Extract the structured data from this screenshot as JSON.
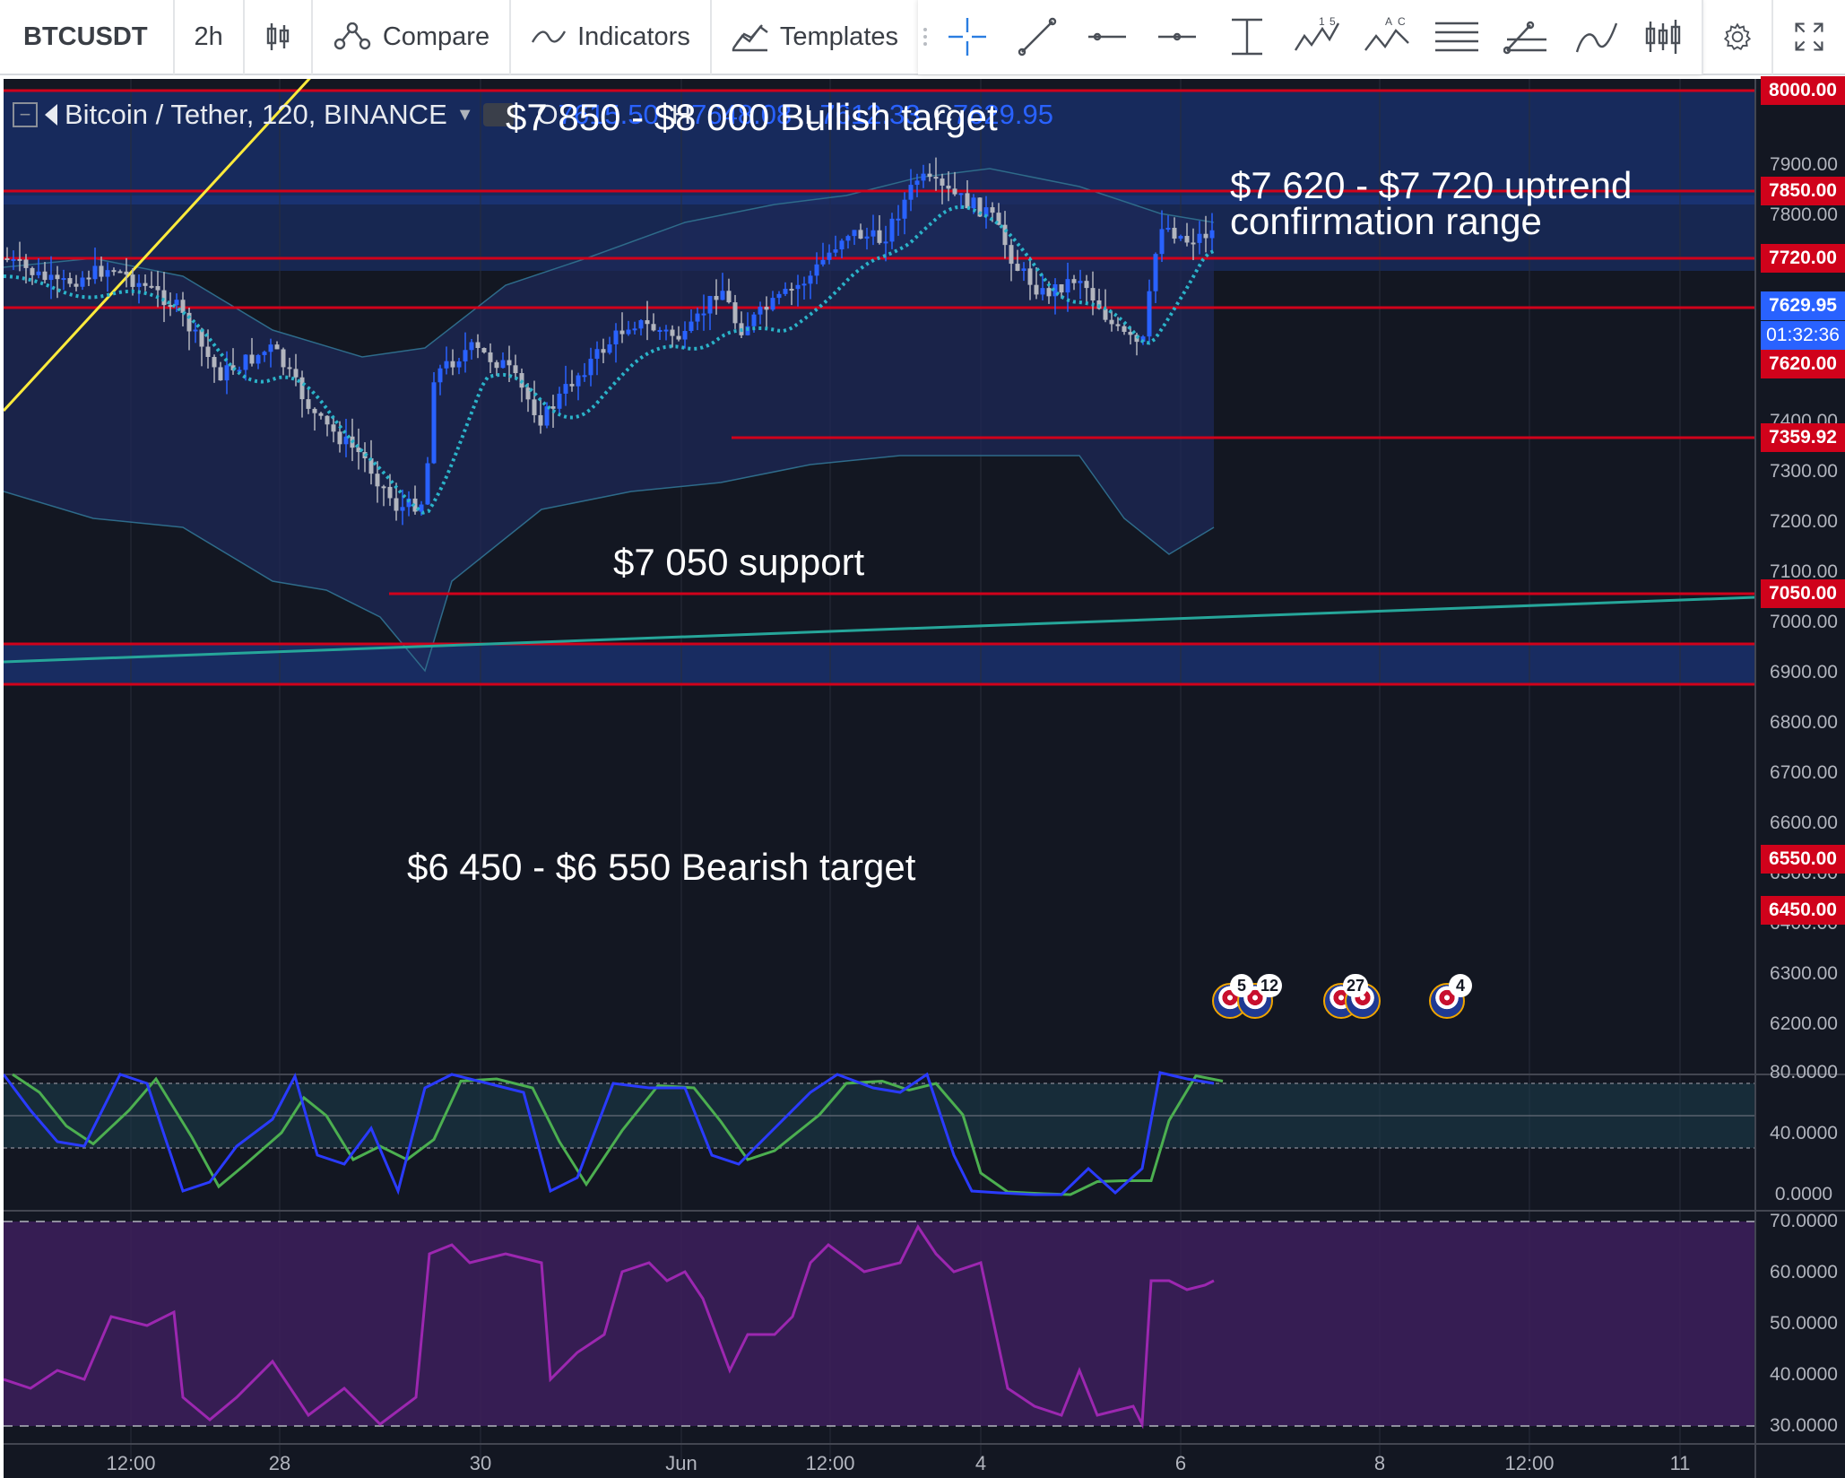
{
  "toolbar": {
    "symbol": "BTCUSDT",
    "interval": "2h",
    "compare_label": "Compare",
    "indicators_label": "Indicators",
    "templates_label": "Templates",
    "tools": [
      "crosshair-icon",
      "trend-line-icon",
      "horizontal-line-icon",
      "horizontal-ray-icon",
      "price-range-icon",
      "elliott-wave-icon",
      "abcd-pattern-icon",
      "fib-retracement-icon",
      "fib-fan-icon",
      "brush-icon",
      "long-short-icon",
      "settings-icon",
      "fullscreen-icon"
    ]
  },
  "legend": {
    "title": "Bitcoin / Tether, 120, BINANCE",
    "o_key": "O",
    "o_val": "7615.50",
    "h_key": "H",
    "h_val": "7648.08",
    "l_key": "L",
    "l_val": "7612.33",
    "c_key": "C",
    "c_val": "7629.95"
  },
  "annotations": {
    "bullish": "$7 850 - $8 000 Bullish target",
    "uptrend_1": "$7 620 - $7 720 uptrend",
    "uptrend_2": "confirmation range",
    "support": "$7 050 support",
    "bearish": "$6 450 - $6 550 Bearish target"
  },
  "price_axis": {
    "ticks": [
      "7900.00",
      "7800.00",
      "7400.00",
      "7300.00",
      "7200.00",
      "7100.00",
      "7000.00",
      "6900.00",
      "6800.00",
      "6700.00",
      "6600.00",
      "6500.00",
      "6400.00",
      "6300.00",
      "6200.00"
    ],
    "red_labels": [
      "8000.00",
      "7850.00",
      "7720.00",
      "7620.00",
      "7359.92",
      "7050.00",
      "6550.00",
      "6450.00"
    ],
    "current_price": "7629.95",
    "countdown": "01:32:36"
  },
  "stoch_axis": [
    "80.0000",
    "40.0000",
    "0.0000"
  ],
  "rsi_axis": [
    "70.0000",
    "60.0000",
    "50.0000",
    "40.0000",
    "30.0000"
  ],
  "time_axis": [
    "12:00",
    "28",
    "30",
    "Jun",
    "12:00",
    "4",
    "6",
    "8",
    "12:00",
    "11"
  ],
  "events": [
    {
      "badge": "5"
    },
    {
      "badge": "12"
    },
    {
      "badge": "27"
    },
    {
      "badge": "4"
    }
  ],
  "colors": {
    "background": "#131722",
    "level_line": "#d0021b",
    "zone_fill": "#1c3b8c",
    "stoch_k": "#2a3bff",
    "stoch_d": "#4caf50",
    "rsi": "#9c27b0",
    "trendline": "#26a69a",
    "yellow_trendline": "#ffeb3b",
    "current_price_bg": "#2962ff"
  }
}
